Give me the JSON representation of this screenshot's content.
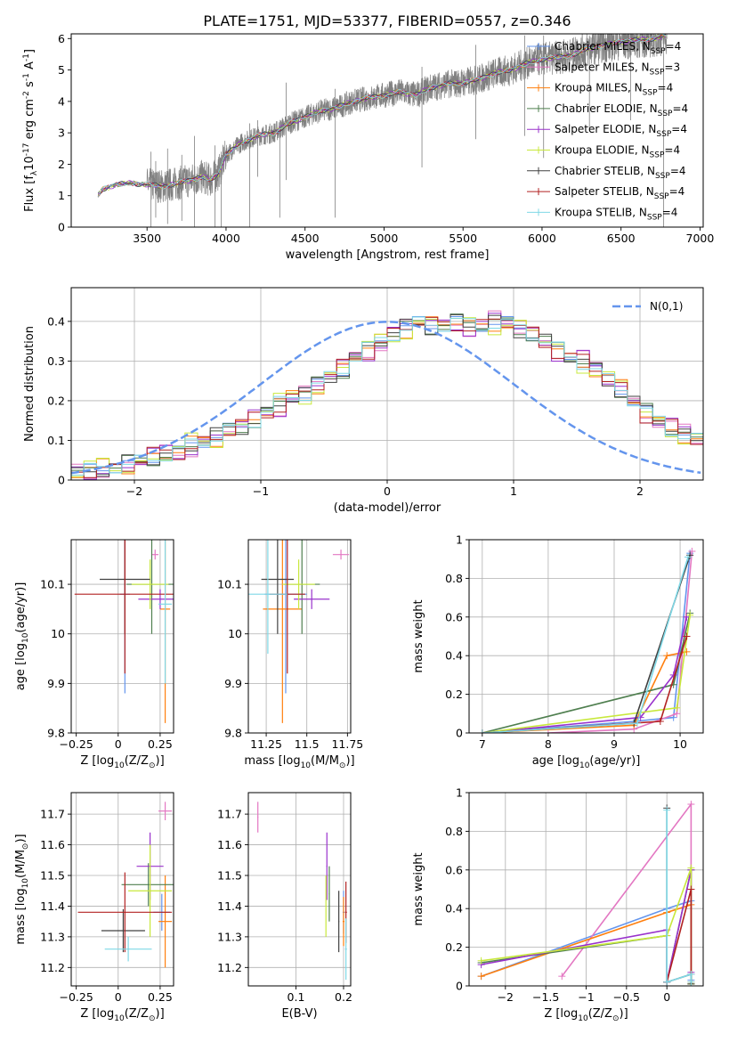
{
  "figure": {
    "title": "PLATE=1751, MJD=53377, FIBERID=0557, z=0.346"
  },
  "legend_models": [
    {
      "label": "Chabrier MILES, N$_{SSP}$=4",
      "color": "#6495ed"
    },
    {
      "label": "Salpeter MILES, N$_{SSP}$=3",
      "color": "#e377c2"
    },
    {
      "label": "Kroupa MILES, N$_{SSP}$=4",
      "color": "#ff7f0e"
    },
    {
      "label": "Chabrier ELODIE, N$_{SSP}$=4",
      "color": "#4f7f4f"
    },
    {
      "label": "Salpeter ELODIE, N$_{SSP}$=4",
      "color": "#9932cc"
    },
    {
      "label": "Kroupa ELODIE, N$_{SSP}$=4",
      "color": "#c8e83c"
    },
    {
      "label": "Chabrier STELIB, N$_{SSP}$=4",
      "color": "#404040"
    },
    {
      "label": "Salpeter STELIB, N$_{SSP}$=4",
      "color": "#b22222"
    },
    {
      "label": "Kroupa STELIB, N$_{SSP}$=4",
      "color": "#7fd8e6"
    }
  ],
  "chart_data": [
    {
      "id": "spectrum",
      "type": "line",
      "xlabel": "wavelength [Angstrom, rest frame]",
      "ylabel": "Flux [f$_\\lambda$10$^{-17}$ erg cm$^{-2}$ s$^{-1}$ A$^{-1}$]",
      "xlim": [
        3020,
        7020
      ],
      "ylim": [
        0,
        6.15
      ],
      "xticks": [
        3500,
        4000,
        4500,
        5000,
        5500,
        6000,
        6500,
        7000
      ],
      "yticks": [
        0,
        1,
        2,
        3,
        4,
        5,
        6
      ],
      "grid": false,
      "legend_position": "top-right",
      "data_color": "#808080",
      "data_range": [
        3190,
        6790
      ],
      "continuum_knots": {
        "x": [
          3190,
          3220,
          3300,
          3400,
          3500,
          3600,
          3700,
          3780,
          3850,
          3900,
          3950,
          4000,
          4100,
          4200,
          4300,
          4400,
          4500,
          4600,
          4700,
          4800,
          4900,
          5000,
          5100,
          5200,
          5300,
          5400,
          5500,
          5600,
          5700,
          5800,
          5900,
          6000,
          6100,
          6200,
          6300,
          6400,
          6500,
          6600,
          6700,
          6790
        ],
        "y": [
          1.0,
          1.2,
          1.35,
          1.4,
          1.35,
          1.3,
          1.4,
          1.5,
          1.6,
          1.5,
          1.7,
          2.3,
          2.7,
          2.9,
          3.0,
          3.3,
          3.5,
          3.7,
          3.8,
          4.0,
          4.1,
          4.2,
          4.3,
          4.2,
          4.45,
          4.55,
          4.6,
          4.7,
          4.9,
          5.0,
          5.2,
          5.35,
          5.4,
          5.5,
          5.7,
          5.8,
          5.9,
          5.95,
          6.0,
          6.1
        ]
      },
      "noisy_spikes": [
        {
          "x": 3525,
          "y0": 0.0,
          "y1": 2.4
        },
        {
          "x": 3555,
          "y0": 0.3,
          "y1": 2.1
        },
        {
          "x": 3630,
          "y0": 0.1,
          "y1": 2.5
        },
        {
          "x": 3720,
          "y0": 0.2,
          "y1": 2.3
        },
        {
          "x": 3800,
          "y0": 0.0,
          "y1": 2.9
        },
        {
          "x": 3930,
          "y0": 0.0,
          "y1": 2.6
        },
        {
          "x": 3970,
          "y0": 0.0,
          "y1": 2.4
        },
        {
          "x": 4150,
          "y0": 0.0,
          "y1": 3.3
        },
        {
          "x": 4200,
          "y0": 1.6,
          "y1": 3.4
        },
        {
          "x": 4340,
          "y0": 0.3,
          "y1": 3.2
        },
        {
          "x": 4380,
          "y0": 1.5,
          "y1": 4.6
        },
        {
          "x": 4690,
          "y0": 0.3,
          "y1": 4.4
        },
        {
          "x": 5240,
          "y0": 1.9,
          "y1": 5.1
        },
        {
          "x": 5580,
          "y0": 2.8,
          "y1": 5.8
        },
        {
          "x": 5890,
          "y0": 2.9,
          "y1": 6.1
        },
        {
          "x": 6010,
          "y0": 2.2,
          "y1": 6.1
        },
        {
          "x": 6300,
          "y0": 3.1,
          "y1": 6.1
        },
        {
          "x": 6560,
          "y0": 3.4,
          "y1": 6.1
        },
        {
          "x": 6770,
          "y0": 0.0,
          "y1": 6.1
        }
      ]
    },
    {
      "id": "residual-histogram",
      "type": "bar",
      "xlabel": "(data-model)/error",
      "ylabel": "Normed distribution",
      "xlim": [
        -2.5,
        2.5
      ],
      "ylim": [
        0,
        0.485
      ],
      "xticks": [
        -2,
        -1,
        0,
        1,
        2
      ],
      "yticks": [
        0.0,
        0.1,
        0.2,
        0.3,
        0.4
      ],
      "grid": true,
      "legend_position": "top-right",
      "gaussian_legend": "$\\mathcal{N}(0,1)$",
      "gaussian_color": "#6495ed",
      "bin_width": 0.1,
      "bin_start": -2.5,
      "base_values": [
        0.02,
        0.022,
        0.028,
        0.035,
        0.04,
        0.048,
        0.057,
        0.064,
        0.07,
        0.087,
        0.1,
        0.11,
        0.125,
        0.135,
        0.15,
        0.17,
        0.19,
        0.21,
        0.22,
        0.24,
        0.26,
        0.28,
        0.31,
        0.33,
        0.35,
        0.37,
        0.385,
        0.395,
        0.39,
        0.39,
        0.4,
        0.39,
        0.39,
        0.4,
        0.395,
        0.38,
        0.37,
        0.35,
        0.33,
        0.31,
        0.3,
        0.28,
        0.25,
        0.23,
        0.2,
        0.17,
        0.15,
        0.13,
        0.115,
        0.1
      ],
      "series_offsets": [
        0.0,
        0.012,
        -0.01,
        0.006,
        -0.014,
        0.016,
        -0.006,
        0.009,
        -0.003
      ]
    },
    {
      "id": "age-vs-metallicity",
      "type": "scatter",
      "xlabel": "Z [log$_{10}$(Z/Z$_\\odot$)]",
      "ylabel": "age  [log$_{10}$(age/yr)]",
      "xlim": [
        -0.28,
        0.33
      ],
      "ylim": [
        9.8,
        10.19
      ],
      "xticks": [
        -0.25,
        0.0,
        0.25
      ],
      "yticks": [
        9.8,
        9.9,
        10.0,
        10.1
      ],
      "grid": true,
      "points": [
        {
          "x": 0.04,
          "y": 10.08,
          "xerr": 0.03,
          "yerr": 0.2
        },
        {
          "x": 0.22,
          "y": 10.16,
          "xerr": 0.02,
          "yerr": 0.01
        },
        {
          "x": 0.28,
          "y": 10.05,
          "xerr": 0.03,
          "yerr": 0.23
        },
        {
          "x": 0.2,
          "y": 10.1,
          "xerr": 0.15,
          "yerr": 0.1
        },
        {
          "x": 0.25,
          "y": 10.07,
          "xerr": 0.13,
          "yerr": 0.02
        },
        {
          "x": 0.19,
          "y": 10.1,
          "xerr": 0.11,
          "yerr": 0.05
        },
        {
          "x": 0.04,
          "y": 10.11,
          "xerr": 0.15,
          "yerr": 0.11
        },
        {
          "x": 0.04,
          "y": 10.08,
          "xerr": 0.3,
          "yerr": 0.16
        },
        {
          "x": 0.28,
          "y": 10.06,
          "xerr": 0.04,
          "yerr": 0.16
        }
      ]
    },
    {
      "id": "age-vs-mass",
      "type": "scatter",
      "xlabel": "mass [log$_{10}$(M/M$_\\odot$)]",
      "ylabel": "",
      "xlim": [
        11.14,
        11.77
      ],
      "ylim": [
        9.8,
        10.19
      ],
      "xticks": [
        11.25,
        11.5,
        11.75
      ],
      "yticks": [
        9.8,
        9.9,
        10.0,
        10.1
      ],
      "grid": true,
      "points": [
        {
          "x": 11.37,
          "y": 10.08,
          "xerr": 0.13,
          "yerr": 0.2
        },
        {
          "x": 11.71,
          "y": 10.16,
          "xerr": 0.05,
          "yerr": 0.01
        },
        {
          "x": 11.35,
          "y": 10.05,
          "xerr": 0.12,
          "yerr": 0.23
        },
        {
          "x": 11.47,
          "y": 10.1,
          "xerr": 0.11,
          "yerr": 0.1
        },
        {
          "x": 11.53,
          "y": 10.07,
          "xerr": 0.11,
          "yerr": 0.02
        },
        {
          "x": 11.45,
          "y": 10.1,
          "xerr": 0.1,
          "yerr": 0.05
        },
        {
          "x": 11.32,
          "y": 10.11,
          "xerr": 0.1,
          "yerr": 0.11
        },
        {
          "x": 11.38,
          "y": 10.08,
          "xerr": 0.11,
          "yerr": 0.16
        },
        {
          "x": 11.26,
          "y": 10.08,
          "xerr": 0.12,
          "yerr": 0.12
        }
      ]
    },
    {
      "id": "mass-weight-vs-age",
      "type": "line",
      "xlabel": "age  [log$_{10}$(age/yr)]",
      "ylabel": "mass weight",
      "xlim": [
        6.8,
        10.35
      ],
      "ylim": [
        0.0,
        1.0
      ],
      "xticks": [
        7,
        8,
        9,
        10
      ],
      "yticks": [
        0.0,
        0.2,
        0.4,
        0.6,
        0.8,
        1.0
      ],
      "grid": true,
      "series_lines": [
        {
          "x": [
            7.0,
            9.3,
            9.9,
            10.15
          ],
          "y": [
            0.0,
            0.06,
            0.08,
            0.93
          ]
        },
        {
          "x": [
            8.0,
            9.3,
            9.95,
            10.18
          ],
          "y": [
            0.0,
            0.02,
            0.1,
            0.94
          ]
        },
        {
          "x": [
            7.0,
            9.3,
            9.8,
            10.1
          ],
          "y": [
            0.0,
            0.04,
            0.4,
            0.42
          ]
        },
        {
          "x": [
            7.0,
            9.9,
            10.15
          ],
          "y": [
            0.0,
            0.25,
            0.62
          ]
        },
        {
          "x": [
            7.0,
            9.4,
            9.9,
            10.1
          ],
          "y": [
            0.0,
            0.08,
            0.3,
            0.6
          ]
        },
        {
          "x": [
            7.0,
            9.95,
            10.15
          ],
          "y": [
            0.0,
            0.13,
            0.61
          ]
        },
        {
          "x": [
            7.0,
            9.3,
            10.15
          ],
          "y": [
            0.0,
            0.05,
            0.92
          ]
        },
        {
          "x": [
            7.0,
            9.7,
            10.1
          ],
          "y": [
            0.0,
            0.06,
            0.5
          ]
        },
        {
          "x": [
            7.0,
            9.35,
            10.12
          ],
          "y": [
            0.0,
            0.05,
            0.91
          ]
        }
      ]
    },
    {
      "id": "mass-vs-metallicity",
      "type": "scatter",
      "xlabel": "Z [log$_{10}$(Z/Z$_\\odot$)]",
      "ylabel": "mass [log$_{10}$(M/M$_\\odot$)]",
      "xlim": [
        -0.28,
        0.33
      ],
      "ylim": [
        11.14,
        11.77
      ],
      "xticks": [
        -0.25,
        0.0,
        0.25
      ],
      "yticks": [
        11.2,
        11.3,
        11.4,
        11.5,
        11.6,
        11.7
      ],
      "grid": true,
      "points": [
        {
          "x": 0.26,
          "y": 11.38,
          "xerr": 0.05,
          "yerr": 0.06
        },
        {
          "x": 0.28,
          "y": 11.71,
          "xerr": 0.04,
          "yerr": 0.03
        },
        {
          "x": 0.28,
          "y": 11.35,
          "xerr": 0.04,
          "yerr": 0.15
        },
        {
          "x": 0.18,
          "y": 11.47,
          "xerr": 0.16,
          "yerr": 0.07
        },
        {
          "x": 0.19,
          "y": 11.53,
          "xerr": 0.08,
          "yerr": 0.11
        },
        {
          "x": 0.19,
          "y": 11.45,
          "xerr": 0.13,
          "yerr": 0.15
        },
        {
          "x": 0.03,
          "y": 11.32,
          "xerr": 0.13,
          "yerr": 0.07
        },
        {
          "x": 0.04,
          "y": 11.38,
          "xerr": 0.28,
          "yerr": 0.13
        },
        {
          "x": 0.06,
          "y": 11.26,
          "xerr": 0.14,
          "yerr": 0.04
        }
      ]
    },
    {
      "id": "mass-vs-extinction",
      "type": "scatter",
      "xlabel": "E(B-V)",
      "ylabel": "",
      "xlim": [
        0.0,
        0.215
      ],
      "ylim": [
        11.14,
        11.77
      ],
      "xticks": [
        0.1,
        0.2
      ],
      "yticks": [
        11.2,
        11.3,
        11.4,
        11.5,
        11.6,
        11.7
      ],
      "grid": true,
      "points": [
        {
          "x": 0.2,
          "y": 11.38,
          "xerr": 0.002,
          "yerr": 0.07
        },
        {
          "x": 0.02,
          "y": 11.69,
          "xerr": 0.001,
          "yerr": 0.05
        },
        {
          "x": 0.2,
          "y": 11.35,
          "xerr": 0.002,
          "yerr": 0.08
        },
        {
          "x": 0.17,
          "y": 11.44,
          "xerr": 0.001,
          "yerr": 0.09
        },
        {
          "x": 0.165,
          "y": 11.53,
          "xerr": 0.001,
          "yerr": 0.11
        },
        {
          "x": 0.163,
          "y": 11.4,
          "xerr": 0.001,
          "yerr": 0.1
        },
        {
          "x": 0.19,
          "y": 11.35,
          "xerr": 0.001,
          "yerr": 0.1
        },
        {
          "x": 0.205,
          "y": 11.38,
          "xerr": 0.002,
          "yerr": 0.1
        },
        {
          "x": 0.205,
          "y": 11.26,
          "xerr": 0.002,
          "yerr": 0.1
        }
      ]
    },
    {
      "id": "mass-weight-vs-metallicity",
      "type": "line",
      "xlabel": "Z [log$_{10}$(Z/Z$_\\odot$)]",
      "ylabel": "mass weight",
      "xlim": [
        -2.45,
        0.45
      ],
      "ylim": [
        0.0,
        1.0
      ],
      "xticks": [
        -2.0,
        -1.5,
        -1.0,
        -0.5,
        0.0
      ],
      "yticks": [
        0.0,
        0.2,
        0.4,
        0.6,
        0.8,
        1.0
      ],
      "grid": true,
      "series_lines": [
        {
          "x": [
            -2.3,
            0.0,
            0.3,
            0.3
          ],
          "y": [
            0.05,
            0.4,
            0.44,
            0.03
          ]
        },
        {
          "x": [
            -1.3,
            0.3,
            0.3
          ],
          "y": [
            0.05,
            0.94,
            0.5
          ]
        },
        {
          "x": [
            -2.3,
            0.0,
            0.3,
            0.3
          ],
          "y": [
            0.05,
            0.38,
            0.42,
            0.02
          ]
        },
        {
          "x": [
            -2.3,
            0.0,
            0.0,
            0.3,
            0.3
          ],
          "y": [
            0.12,
            0.26,
            0.02,
            0.6,
            0.01
          ]
        },
        {
          "x": [
            -2.3,
            0.0,
            0.0,
            0.3,
            0.3
          ],
          "y": [
            0.11,
            0.29,
            0.02,
            0.6,
            0.07
          ]
        },
        {
          "x": [
            -2.3,
            0.0,
            0.3,
            0.3
          ],
          "y": [
            0.13,
            0.26,
            0.61,
            0.01
          ]
        },
        {
          "x": [
            0.0,
            0.0,
            0.3,
            0.3
          ],
          "y": [
            0.92,
            0.02,
            0.06,
            0.01
          ]
        },
        {
          "x": [
            0.0,
            0.3,
            0.3
          ],
          "y": [
            0.02,
            0.5,
            0.06
          ]
        },
        {
          "x": [
            0.0,
            0.0,
            0.3,
            0.3
          ],
          "y": [
            0.91,
            0.02,
            0.06,
            0.02
          ]
        }
      ]
    }
  ]
}
